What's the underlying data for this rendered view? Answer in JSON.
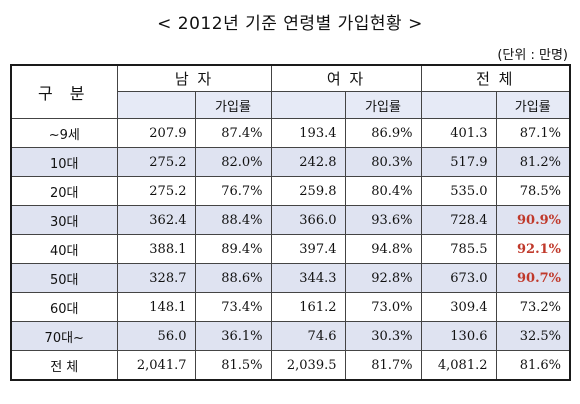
{
  "title": "< 2012년 기준 연령별 가입현황 >",
  "unit": "(단위 : 만명)",
  "headers": {
    "category": "구 분",
    "male": "남 자",
    "female": "여 자",
    "total": "전 체",
    "rate": "가입률"
  },
  "rows": [
    {
      "cat": "~9세",
      "m": "207.9",
      "mr": "87.4%",
      "f": "193.4",
      "fr": "86.9%",
      "t": "401.3",
      "tr": "87.1%",
      "hl": false
    },
    {
      "cat": "10대",
      "m": "275.2",
      "mr": "82.0%",
      "f": "242.8",
      "fr": "80.3%",
      "t": "517.9",
      "tr": "81.2%",
      "hl": false
    },
    {
      "cat": "20대",
      "m": "275.2",
      "mr": "76.7%",
      "f": "259.8",
      "fr": "80.4%",
      "t": "535.0",
      "tr": "78.5%",
      "hl": false
    },
    {
      "cat": "30대",
      "m": "362.4",
      "mr": "88.4%",
      "f": "366.0",
      "fr": "93.6%",
      "t": "728.4",
      "tr": "90.9%",
      "hl": true
    },
    {
      "cat": "40대",
      "m": "388.1",
      "mr": "89.4%",
      "f": "397.4",
      "fr": "94.8%",
      "t": "785.5",
      "tr": "92.1%",
      "hl": true
    },
    {
      "cat": "50대",
      "m": "328.7",
      "mr": "88.6%",
      "f": "344.3",
      "fr": "92.8%",
      "t": "673.0",
      "tr": "90.7%",
      "hl": true
    },
    {
      "cat": "60대",
      "m": "148.1",
      "mr": "73.4%",
      "f": "161.2",
      "fr": "73.0%",
      "t": "309.4",
      "tr": "73.2%",
      "hl": false
    },
    {
      "cat": "70대~",
      "m": "56.0",
      "mr": "36.1%",
      "f": "74.6",
      "fr": "30.3%",
      "t": "130.6",
      "tr": "32.5%",
      "hl": false
    },
    {
      "cat": "전 체",
      "m": "2,041.7",
      "mr": "81.5%",
      "f": "2,039.5",
      "fr": "81.7%",
      "t": "4,081.2",
      "tr": "81.6%",
      "hl": false
    }
  ]
}
